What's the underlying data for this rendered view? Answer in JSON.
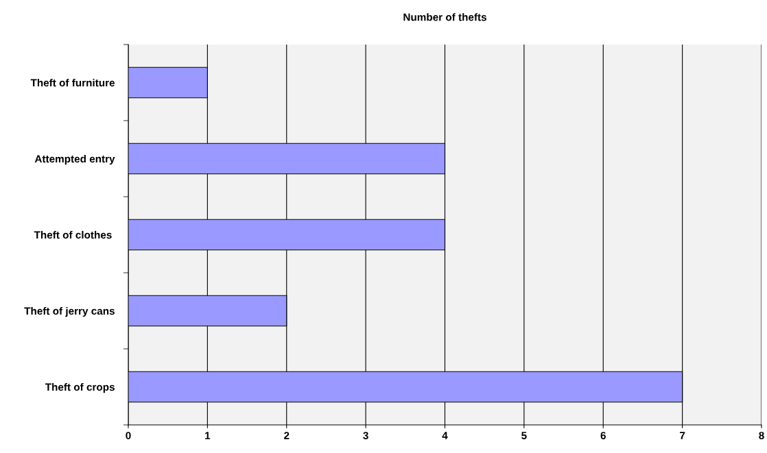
{
  "chart_data": {
    "type": "bar",
    "orientation": "horizontal",
    "title": "Number of thefts",
    "categories": [
      "Theft of furniture",
      "Attempted entry",
      "Theft of clothes ",
      "Theft of jerry cans",
      "Theft of crops"
    ],
    "values": [
      1,
      4,
      4,
      2,
      7
    ],
    "color": "#9999ff",
    "xlim": [
      0,
      8
    ],
    "xticks": [
      0,
      1,
      2,
      3,
      4,
      5,
      6,
      7,
      8
    ],
    "grid": "x",
    "legend": false
  }
}
